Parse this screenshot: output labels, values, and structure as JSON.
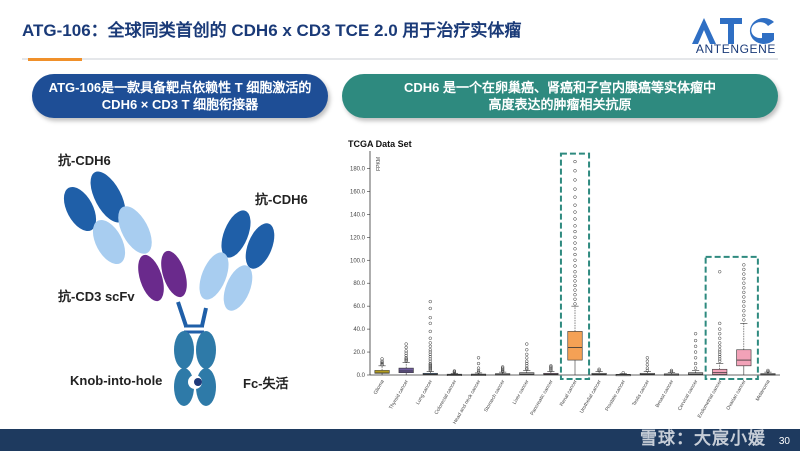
{
  "slide": {
    "title": "ATG-106：全球同类首创的 CDH6 x CD3 TCE 2.0 用于治疗实体瘤",
    "logo_text": "ANTENGENE",
    "page_number": "30",
    "watermark": "雪球：大宸小媛"
  },
  "pills": {
    "left_line1": "ATG-106是一款具备靶点依赖性 T 细胞激活的",
    "left_line2": "CDH6 × CD3 T 细胞衔接器",
    "right_line1": "CDH6 是一个在卵巢癌、肾癌和子宫内膜癌等实体瘤中",
    "right_line2": "高度表达的肿瘤相关抗原"
  },
  "antibody": {
    "label_cdh6_left": "抗-CDH6",
    "label_cdh6_right": "抗-CDH6",
    "label_cd3": "抗-CD3 scFv",
    "label_knob": "Knob-into-hole",
    "label_fc": "Fc-失活",
    "colors": {
      "dark_blue": "#1f5fa8",
      "light_blue": "#a8cdf0",
      "purple": "#6a2a8c",
      "teal": "#3a7fa8"
    }
  },
  "chart_data": {
    "type": "box",
    "title": "TCGA Data Set",
    "ylabel": "FPKM",
    "ylim": [
      0,
      190
    ],
    "yticks": [
      0,
      20,
      40,
      60,
      80,
      100,
      120,
      140,
      160,
      180
    ],
    "ytick_labels": [
      "0.0",
      "20.0",
      "40.0",
      "60.0",
      "80.0",
      "100.0",
      "120.0",
      "140.0",
      "160.0",
      "180.0"
    ],
    "categories": [
      "Glioma",
      "Thyroid cancer",
      "Lung cancer",
      "Colorectal cancer",
      "Head and neck cancer",
      "Stomach cancer",
      "Liver cancer",
      "Pancreatic cancer",
      "Renal cancer",
      "Urothelial cancer",
      "Prostate cancer",
      "Testis cancer",
      "Breast cancer",
      "Cervical cancer",
      "Endometrial cancer",
      "Ovarian cancer",
      "Melanoma"
    ],
    "boxes": [
      {
        "q1": 1.5,
        "median": 2.5,
        "q3": 4,
        "whisker_low": 0,
        "whisker_high": 8,
        "outliers": [
          9,
          10,
          11,
          12,
          14
        ],
        "color": "#e0c21a"
      },
      {
        "q1": 2,
        "median": 3.5,
        "q3": 6,
        "whisker_low": 0,
        "whisker_high": 11,
        "outliers": [
          12,
          13,
          14,
          15,
          17,
          19,
          21,
          24,
          27
        ],
        "color": "#6d5a9e"
      },
      {
        "q1": 0.2,
        "median": 0.6,
        "q3": 1.5,
        "whisker_low": 0,
        "whisker_high": 3,
        "outliers": [
          4,
          5,
          6,
          7,
          8,
          9,
          10,
          12,
          14,
          16,
          18,
          20,
          22,
          25,
          28,
          32,
          38,
          45,
          50,
          58,
          64
        ],
        "color": "#5b7fa8"
      },
      {
        "q1": 0.1,
        "median": 0.3,
        "q3": 0.7,
        "whisker_low": 0,
        "whisker_high": 1.5,
        "outliers": [
          2,
          3,
          3.5
        ],
        "color": "#c0c0c0"
      },
      {
        "q1": 0.1,
        "median": 0.3,
        "q3": 0.8,
        "whisker_low": 0,
        "whisker_high": 1.8,
        "outliers": [
          2.5,
          4,
          6,
          10,
          15
        ],
        "color": "#c0c0c0"
      },
      {
        "q1": 0.2,
        "median": 0.5,
        "q3": 1.2,
        "whisker_low": 0,
        "whisker_high": 2.5,
        "outliers": [
          3,
          4,
          5,
          6,
          7
        ],
        "color": "#c0c0c0"
      },
      {
        "q1": 0.3,
        "median": 0.8,
        "q3": 2,
        "whisker_low": 0,
        "whisker_high": 4,
        "outliers": [
          5,
          6,
          8,
          10,
          12,
          15,
          18,
          22,
          27
        ],
        "color": "#c0c0c0"
      },
      {
        "q1": 0.2,
        "median": 0.7,
        "q3": 1.5,
        "whisker_low": 0,
        "whisker_high": 3,
        "outliers": [
          4,
          5,
          6,
          7,
          8
        ],
        "color": "#d8a0c8"
      },
      {
        "q1": 13,
        "median": 24,
        "q3": 38,
        "whisker_low": 0,
        "whisker_high": 60,
        "outliers": [
          62,
          66,
          70,
          74,
          78,
          82,
          86,
          90,
          95,
          100,
          105,
          110,
          115,
          120,
          125,
          130,
          136,
          142,
          148,
          155,
          162,
          170,
          178,
          186
        ],
        "color": "#f5a155"
      },
      {
        "q1": 0.2,
        "median": 0.6,
        "q3": 1.5,
        "whisker_low": 0,
        "whisker_high": 3,
        "outliers": [
          4,
          5
        ],
        "color": "#c0c0c0"
      },
      {
        "q1": 0.1,
        "median": 0.3,
        "q3": 0.6,
        "whisker_low": 0,
        "whisker_high": 1.2,
        "outliers": [
          2
        ],
        "color": "#c0c0c0"
      },
      {
        "q1": 0.2,
        "median": 0.6,
        "q3": 1.5,
        "whisker_low": 0,
        "whisker_high": 3,
        "outliers": [
          4,
          6,
          9,
          12,
          15
        ],
        "color": "#c0c0c0"
      },
      {
        "q1": 0.2,
        "median": 0.5,
        "q3": 1,
        "whisker_low": 0,
        "whisker_high": 2,
        "outliers": [
          3,
          4
        ],
        "color": "#c0c0c0"
      },
      {
        "q1": 0.3,
        "median": 0.8,
        "q3": 2,
        "whisker_low": 0,
        "whisker_high": 4,
        "outliers": [
          6,
          10,
          15,
          20,
          25,
          30,
          36
        ],
        "color": "#c0c0c0"
      },
      {
        "q1": 0.5,
        "median": 2,
        "q3": 5,
        "whisker_low": 0,
        "whisker_high": 10,
        "outliers": [
          12,
          14,
          16,
          18,
          20,
          22,
          25,
          28,
          32,
          36,
          40,
          45,
          90
        ],
        "color": "#f2a2b8"
      },
      {
        "q1": 8,
        "median": 13,
        "q3": 22,
        "whisker_low": 0,
        "whisker_high": 45,
        "outliers": [
          48,
          52,
          56,
          60,
          64,
          68,
          72,
          76,
          80,
          84,
          88,
          92,
          96
        ],
        "color": "#f2a2b8"
      },
      {
        "q1": 0.2,
        "median": 0.5,
        "q3": 1.2,
        "whisker_low": 0,
        "whisker_high": 2.5,
        "outliers": [
          3,
          4
        ],
        "color": "#c0c0c0"
      }
    ],
    "highlighted": [
      "Renal cancer",
      "Endometrial cancer",
      "Ovarian cancer"
    ],
    "highlight_color": "#2e8a7f"
  }
}
